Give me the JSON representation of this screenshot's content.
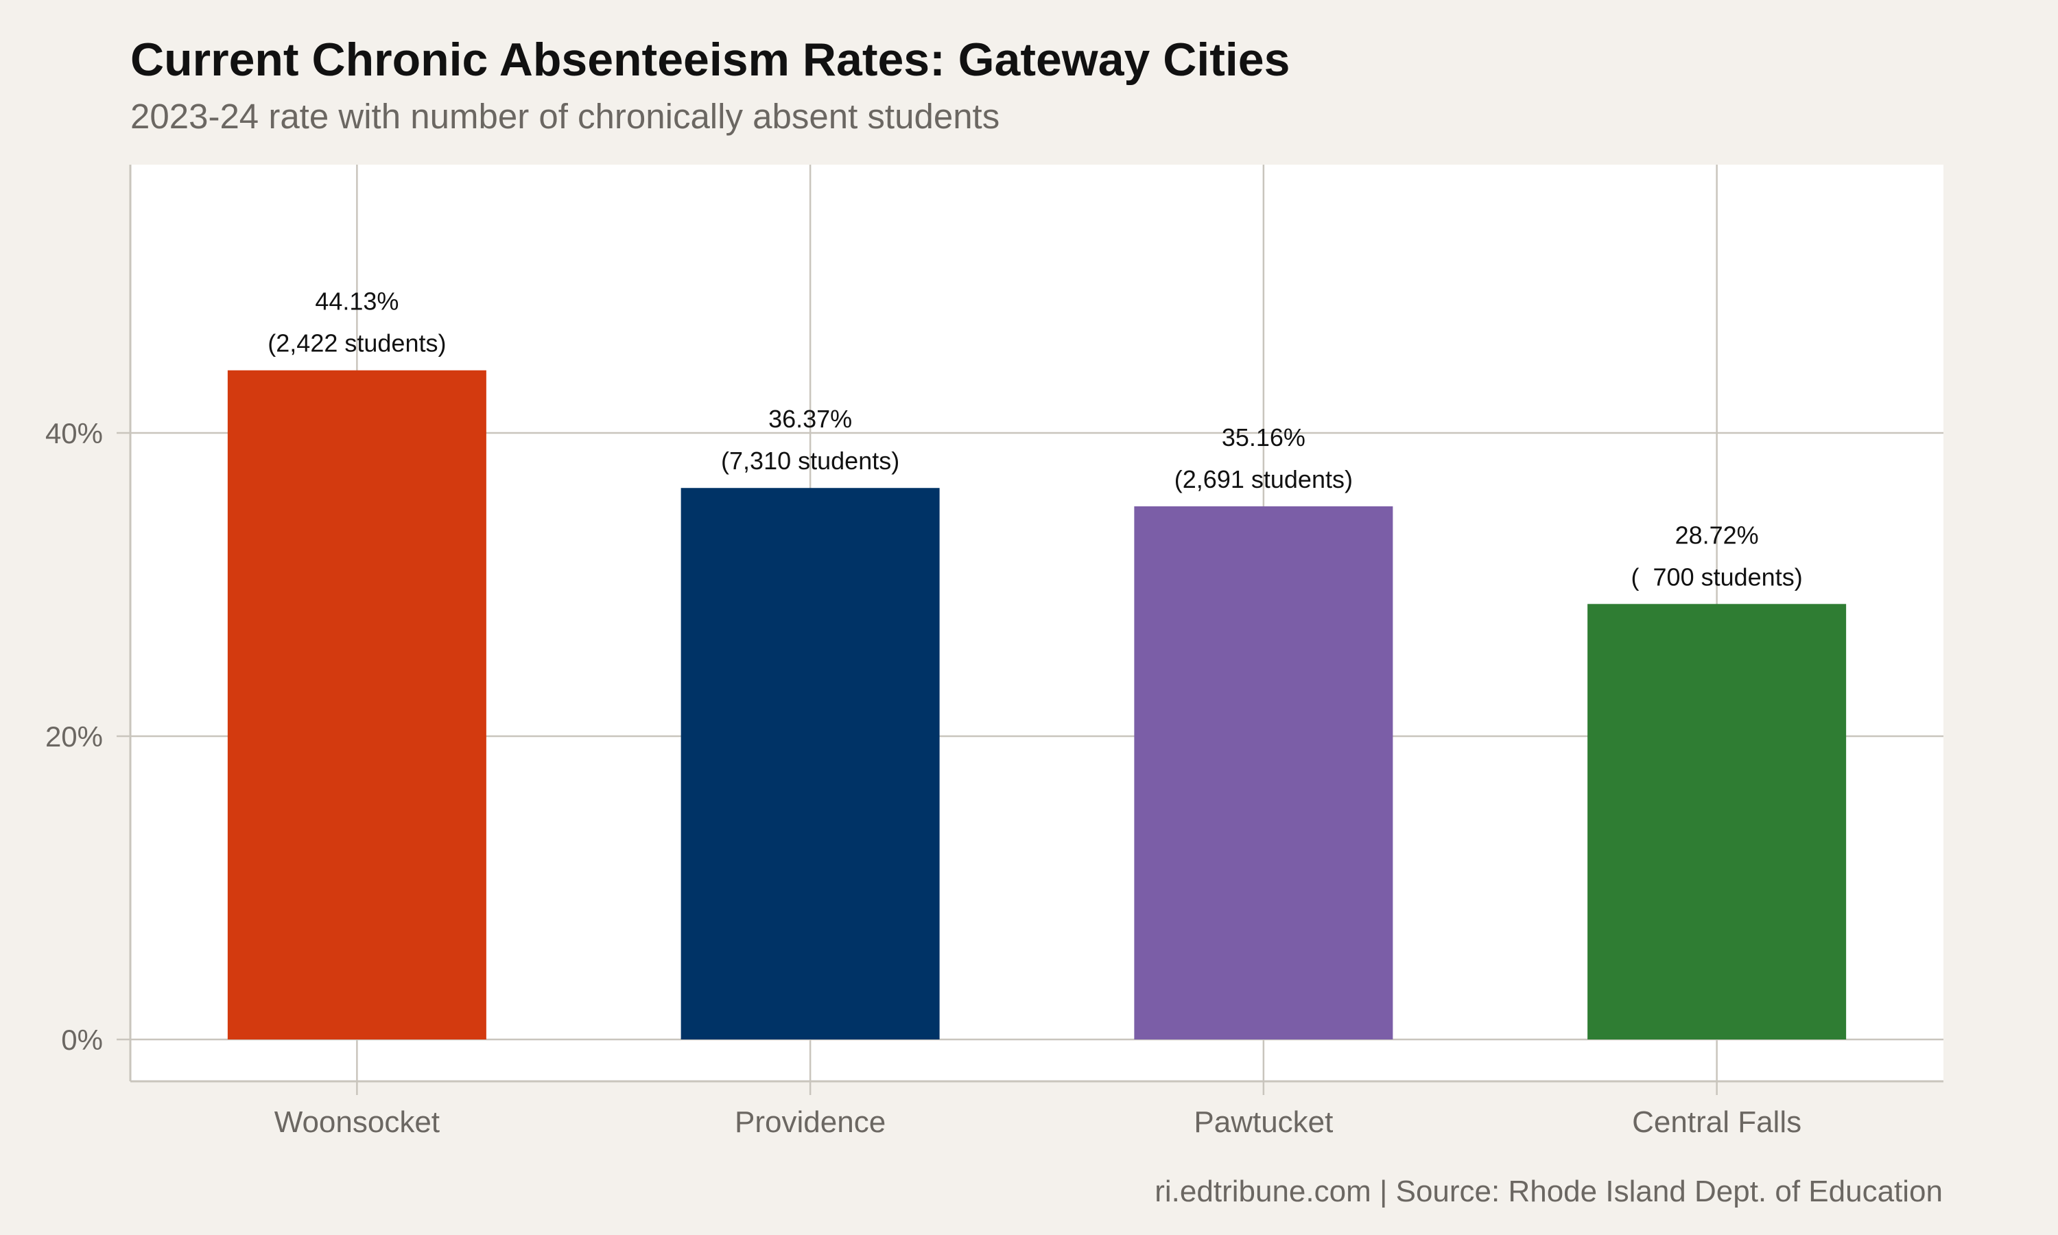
{
  "chart_data": {
    "type": "bar",
    "title": "Current Chronic Absenteeism Rates: Gateway Cities",
    "subtitle": "2023-24 rate with number of chronically absent students",
    "caption": "ri.edtribune.com | Source: Rhode Island Dept. of Education",
    "xlabel": "",
    "ylabel": "",
    "categories": [
      "Woonsocket",
      "Providence",
      "Pawtucket",
      "Central Falls"
    ],
    "values": [
      44.13,
      36.37,
      35.16,
      28.72
    ],
    "students": [
      "2,422",
      "7,310",
      "2,691",
      "  700"
    ],
    "value_labels": [
      "44.13%",
      "36.37%",
      "35.16%",
      "28.72%"
    ],
    "count_labels": [
      "(2,422 students)",
      "(7,310 students)",
      "(2,691 students)",
      "(  700 students)"
    ],
    "colors": [
      "#d33a0f",
      "#003366",
      "#7b5ea7",
      "#2f7d33"
    ],
    "ylim": [
      -1.4,
      58.5
    ],
    "yticks": [
      0,
      20,
      40
    ],
    "ytick_labels": [
      "0%",
      "20%",
      "40%"
    ],
    "grid": true,
    "legend": "none",
    "background": "#f4f1ec",
    "panel_background": "#ffffff",
    "grid_color": "#c9c5bd"
  }
}
